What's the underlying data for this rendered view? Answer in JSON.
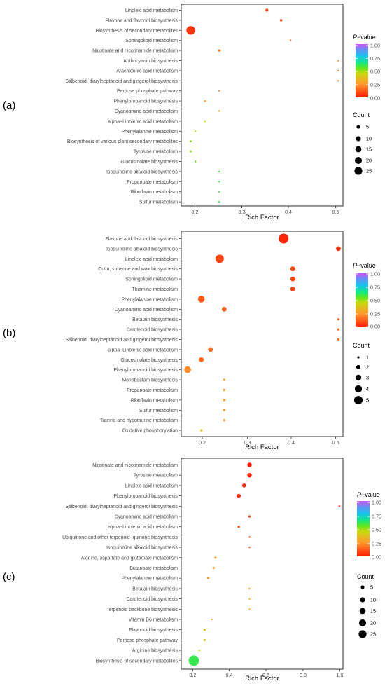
{
  "chart_data": [
    {
      "panel_label": "(a)",
      "type": "scatter",
      "xlabel": "Rich Factor",
      "xticks": [
        "0.2",
        "0.3",
        "0.4",
        "0.5"
      ],
      "xlim": [
        0.17,
        0.51
      ],
      "categories": [
        "Linoleic acid metabolism",
        "Flavone and flavonol biosynthesis",
        "Biosynthesis of secondary metabolites",
        "Sphingolipid metabolism",
        "Nicotinate and nicotinamide metabolism",
        "Anthocyanin biosynthesis",
        "Arachidonic acid metabolism",
        "Stilbenoid, diarylheptanoid and gingerol biosynthesis",
        "Pentose phosphate pathway",
        "Phenylpropanoid biosynthesis",
        "Cyanoamino acid metabolism",
        "alpha−Linolenic acid metabolism",
        "Phenylalanine metabolism",
        "Biosynthesis of various plant secondary metabolites",
        "Tyrosine metabolism",
        "Glucosinolate biosynthesis",
        "Isoquinoline alkaloid biosynthesis",
        "Propanoate metabolism",
        "Riboflavin metabolism",
        "Sulfur metabolism"
      ],
      "rich_factor": [
        0.35,
        0.38,
        0.19,
        0.4,
        0.25,
        0.5,
        0.5,
        0.5,
        0.25,
        0.22,
        0.25,
        0.22,
        0.2,
        0.19,
        0.19,
        0.2,
        0.25,
        0.25,
        0.25,
        0.25
      ],
      "count": [
        7,
        6,
        25,
        4,
        6,
        2,
        2,
        2,
        4,
        5,
        4,
        4,
        4,
        5,
        5,
        4,
        2,
        2,
        2,
        2
      ],
      "p_value": [
        0.05,
        0.05,
        0.05,
        0.18,
        0.2,
        0.22,
        0.22,
        0.22,
        0.22,
        0.25,
        0.3,
        0.45,
        0.45,
        0.5,
        0.5,
        0.55,
        0.6,
        0.6,
        0.6,
        0.6
      ],
      "legend": {
        "pvalue_title": "P−value",
        "pvalue_ticks": [
          "1.00",
          "0.75",
          "0.50",
          "0.25",
          "0.00"
        ],
        "count_title": "Count",
        "count_values": [
          5,
          10,
          15,
          20,
          25
        ],
        "count_labels": [
          "5",
          "10",
          "15",
          "20",
          "25"
        ]
      }
    },
    {
      "panel_label": "(b)",
      "type": "scatter",
      "xlabel": "Rich Factor",
      "xticks": [
        "0.2",
        "0.3",
        "0.4",
        "0.5"
      ],
      "xlim": [
        0.156,
        0.51
      ],
      "categories": [
        "Flavone and flavonol biosynthesis",
        "Isoquinoline alkaloid biosynthesis",
        "Linoleic acid metabolism",
        "Cutin, suberine and wax biosynthesis",
        "Sphingolipid metabolism",
        "Thiamine metabolism",
        "Phenylalanine metabolism",
        "Cyanoamino acid metabolism",
        "Betalain biosynthesis",
        "Carotenoid biosynthesis",
        "Stilbenoid, diarylheptanoid and gingerol biosynthesis",
        "alpha−Linolenic acid metabolism",
        "Glucosinolate biosynthesis",
        "Phenylpropanoid biosynthesis",
        "Monobactam biosynthesis",
        "Propanoate metabolism",
        "Riboflavin metabolism",
        "Sulfur metabolism",
        "Taurine and hypotaurine metabolism",
        "Oxidative phosphorylation"
      ],
      "rich_factor": [
        0.38,
        0.5,
        0.24,
        0.4,
        0.4,
        0.4,
        0.2,
        0.25,
        0.5,
        0.5,
        0.5,
        0.22,
        0.2,
        0.17,
        0.25,
        0.25,
        0.25,
        0.25,
        0.25,
        0.2
      ],
      "count": [
        5,
        2,
        4,
        2,
        2,
        2,
        3,
        2,
        1,
        1,
        1,
        2,
        2,
        3,
        1,
        1,
        1,
        1,
        1,
        1
      ],
      "p_value": [
        0.02,
        0.05,
        0.08,
        0.08,
        0.08,
        0.08,
        0.12,
        0.12,
        0.14,
        0.14,
        0.14,
        0.16,
        0.16,
        0.22,
        0.25,
        0.25,
        0.25,
        0.25,
        0.25,
        0.4
      ],
      "legend": {
        "pvalue_title": "P−value",
        "pvalue_ticks": [
          "1.00",
          "0.75",
          "0.50",
          "0.25",
          "0.00"
        ],
        "count_title": "Count",
        "count_values": [
          1,
          2,
          3,
          4,
          5
        ],
        "count_labels": [
          "1",
          "2",
          "3",
          "4",
          "5"
        ]
      }
    },
    {
      "panel_label": "(c)",
      "type": "scatter",
      "xlabel": "Rich Factor",
      "xticks": [
        "0.2",
        "0.4",
        "0.6",
        "0.8",
        "1.0"
      ],
      "xlim": [
        0.12,
        1.02
      ],
      "categories": [
        "Nicotinate and nicotinamide metabolism",
        "Tyrosine metabolism",
        "Linoleic acid metabolism",
        "Phenylpropanoid biosynthesis",
        "Stilbenoid, diarylheptanoid and gingerol biosynthesis",
        "Cyanoamino acid metabolism",
        "alpha−Linolenic acid metabolism",
        "Ubiquinone and other terpenoid−quinone biosynthesis",
        "Isoquinoline alkaloid biosynthesis",
        "Alanine, aspartate and glutamate metabolism",
        "Butanoate metabolism",
        "Phenylalanine metabolism",
        "Betalain biosynthesis",
        "Carotenoid biosynthesis",
        "Terpenoid backbone biosynthesis",
        "Vitamin B6 metabolism",
        "Flavonoid biosynthesis",
        "Pentose phosphate pathway",
        "Arginine biosynthesis",
        "Biosynthesis of secondary metabolites"
      ],
      "rich_factor": [
        0.5,
        0.5,
        0.47,
        0.44,
        1.0,
        0.5,
        0.44,
        0.5,
        0.5,
        0.31,
        0.3,
        0.27,
        0.5,
        0.5,
        0.5,
        0.29,
        0.25,
        0.25,
        0.22,
        0.19
      ],
      "count": [
        9,
        9,
        8,
        8,
        2,
        5,
        5,
        4,
        4,
        5,
        5,
        5,
        2,
        2,
        2,
        4,
        5,
        5,
        4,
        25
      ],
      "p_value": [
        0.02,
        0.02,
        0.03,
        0.03,
        0.03,
        0.04,
        0.06,
        0.1,
        0.12,
        0.25,
        0.25,
        0.25,
        0.3,
        0.3,
        0.3,
        0.35,
        0.38,
        0.4,
        0.42,
        0.6
      ],
      "legend": {
        "pvalue_title": "P−value",
        "pvalue_ticks": [
          "1.00",
          "0.75",
          "0.50",
          "0.25",
          "0.00"
        ],
        "count_title": "Count",
        "count_values": [
          5,
          10,
          15,
          20,
          25
        ],
        "count_labels": [
          "5",
          "10",
          "15",
          "20",
          "25"
        ]
      }
    }
  ]
}
